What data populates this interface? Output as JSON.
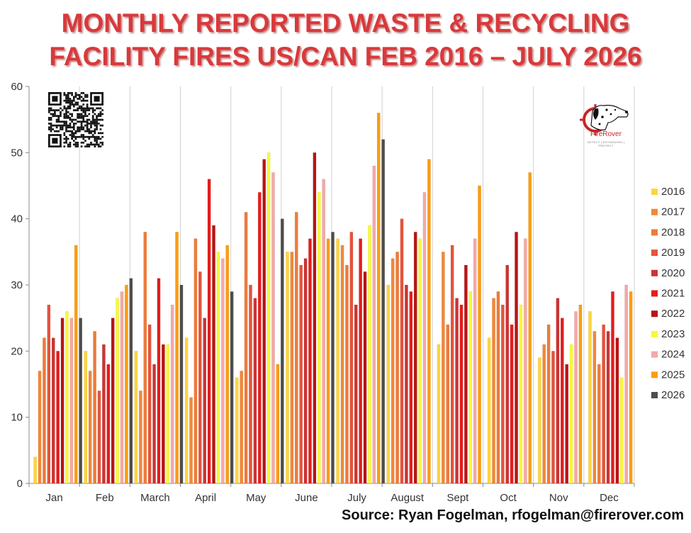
{
  "header": {
    "title_line1": "MONTHLY REPORTED WASTE & RECYCLING",
    "title_line2": "FACILITY FIRES US/CAN FEB 2016 – JULY 2026"
  },
  "footer": {
    "source": "Source: Ryan Fogelman, rfogelman@firerover.com"
  },
  "logo": {
    "name": "FireRover",
    "tagline": "DETECT | EXTINGUISH | PROTECT",
    "icon": "dalmatian-crosshair-icon"
  },
  "qr": {
    "icon": "qr-code-icon"
  },
  "colors": {
    "title": "#d9393b",
    "2016": "#fcd53f",
    "2017": "#f0883a",
    "2018": "#ee7b3a",
    "2019": "#e5533c",
    "2020": "#cb3434",
    "2021": "#e61c1c",
    "2022": "#b81414",
    "2023": "#f8f83a",
    "2024": "#f4a8a8",
    "2025": "#fb9d10",
    "2026": "#4d4d4d"
  },
  "chart_data": {
    "type": "bar",
    "categories": [
      "Jan",
      "Feb",
      "March",
      "April",
      "May",
      "June",
      "July",
      "August",
      "Sept",
      "Oct",
      "Nov",
      "Dec"
    ],
    "ylim": [
      0,
      60
    ],
    "yticks": [
      0,
      10,
      20,
      30,
      40,
      50,
      60
    ],
    "grid": "vertical",
    "legend_position": "right",
    "series": [
      {
        "name": "2016",
        "values": [
          4,
          20,
          20,
          22,
          16,
          35,
          37,
          30,
          21,
          22,
          19,
          26
        ]
      },
      {
        "name": "2017",
        "values": [
          17,
          17,
          14,
          13,
          17,
          35,
          36,
          34,
          35,
          28,
          21,
          23
        ]
      },
      {
        "name": "2018",
        "values": [
          22,
          23,
          38,
          37,
          41,
          41,
          33,
          35,
          24,
          29,
          24,
          18
        ]
      },
      {
        "name": "2019",
        "values": [
          27,
          14,
          24,
          32,
          30,
          33,
          38,
          40,
          36,
          27,
          20,
          24
        ]
      },
      {
        "name": "2020",
        "values": [
          22,
          21,
          18,
          25,
          28,
          34,
          27,
          30,
          28,
          33,
          28,
          23
        ]
      },
      {
        "name": "2021",
        "values": [
          20,
          18,
          31,
          46,
          44,
          37,
          37,
          29,
          27,
          24,
          25,
          29
        ]
      },
      {
        "name": "2022",
        "values": [
          25,
          25,
          21,
          39,
          49,
          50,
          32,
          38,
          33,
          38,
          18,
          22
        ]
      },
      {
        "name": "2023",
        "values": [
          26,
          28,
          21,
          35,
          50,
          44,
          39,
          37,
          29,
          27,
          21,
          16
        ]
      },
      {
        "name": "2024",
        "values": [
          25,
          29,
          27,
          34,
          47,
          46,
          48,
          44,
          37,
          37,
          26,
          30
        ]
      },
      {
        "name": "2025",
        "values": [
          36,
          30,
          38,
          36,
          18,
          37,
          56,
          49,
          45,
          47,
          27,
          29
        ]
      },
      {
        "name": "2026",
        "values": [
          25,
          31,
          30,
          29,
          40,
          38,
          52,
          null,
          null,
          null,
          null,
          null
        ]
      }
    ]
  }
}
